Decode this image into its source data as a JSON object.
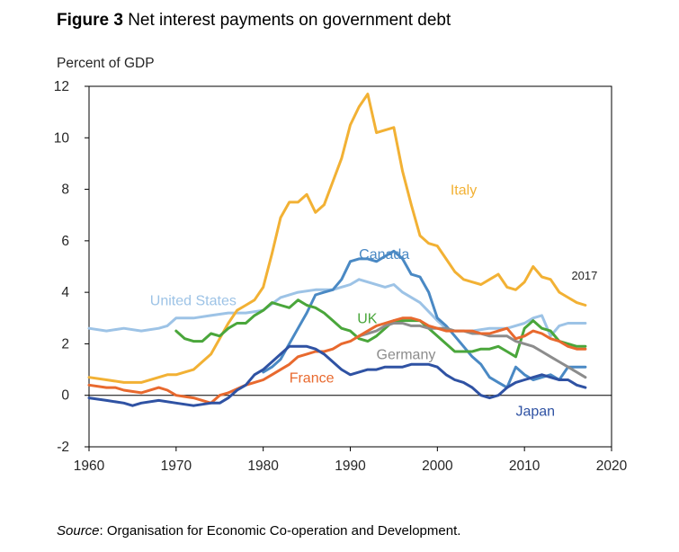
{
  "figure": {
    "number": "Figure 3",
    "title": "Net interest payments on government debt",
    "source_label": "Source",
    "source_text": ": Organisation for Economic Co-operation and Development."
  },
  "chart_data": {
    "type": "line",
    "title": "Net interest payments on government debt",
    "xlabel": "",
    "ylabel": "Percent of GDP",
    "xlim": [
      1960,
      2020
    ],
    "ylim": [
      -2,
      12
    ],
    "xticks": [
      1960,
      1970,
      1980,
      1990,
      2000,
      2010,
      2020
    ],
    "yticks": [
      -2,
      0,
      2,
      4,
      6,
      8,
      10,
      12
    ],
    "grid": false,
    "annotation": "2017",
    "series": [
      {
        "name": "United States",
        "color": "#9dc3e6",
        "label_at": [
          1967,
          3.5
        ],
        "points": [
          [
            1960,
            2.6
          ],
          [
            1962,
            2.5
          ],
          [
            1964,
            2.6
          ],
          [
            1966,
            2.5
          ],
          [
            1968,
            2.6
          ],
          [
            1969,
            2.7
          ],
          [
            1970,
            3.0
          ],
          [
            1972,
            3.0
          ],
          [
            1974,
            3.1
          ],
          [
            1976,
            3.2
          ],
          [
            1978,
            3.2
          ],
          [
            1980,
            3.3
          ],
          [
            1982,
            3.8
          ],
          [
            1984,
            4.0
          ],
          [
            1986,
            4.1
          ],
          [
            1988,
            4.1
          ],
          [
            1990,
            4.3
          ],
          [
            1991,
            4.5
          ],
          [
            1992,
            4.4
          ],
          [
            1994,
            4.2
          ],
          [
            1995,
            4.3
          ],
          [
            1996,
            4.0
          ],
          [
            1998,
            3.6
          ],
          [
            2000,
            2.9
          ],
          [
            2001,
            2.6
          ],
          [
            2002,
            2.5
          ],
          [
            2004,
            2.5
          ],
          [
            2006,
            2.6
          ],
          [
            2008,
            2.6
          ],
          [
            2010,
            2.8
          ],
          [
            2011,
            3.0
          ],
          [
            2012,
            3.1
          ],
          [
            2013,
            2.3
          ],
          [
            2014,
            2.7
          ],
          [
            2015,
            2.8
          ],
          [
            2017,
            2.8
          ]
        ]
      },
      {
        "name": "Italy",
        "color": "#f2b134",
        "label_at": [
          2001.5,
          7.8
        ],
        "points": [
          [
            1960,
            0.7
          ],
          [
            1962,
            0.6
          ],
          [
            1964,
            0.5
          ],
          [
            1966,
            0.5
          ],
          [
            1968,
            0.7
          ],
          [
            1969,
            0.8
          ],
          [
            1970,
            0.8
          ],
          [
            1972,
            1.0
          ],
          [
            1974,
            1.6
          ],
          [
            1976,
            2.8
          ],
          [
            1977,
            3.3
          ],
          [
            1978,
            3.5
          ],
          [
            1979,
            3.7
          ],
          [
            1980,
            4.2
          ],
          [
            1981,
            5.5
          ],
          [
            1982,
            6.9
          ],
          [
            1983,
            7.5
          ],
          [
            1984,
            7.5
          ],
          [
            1985,
            7.8
          ],
          [
            1986,
            7.1
          ],
          [
            1987,
            7.4
          ],
          [
            1988,
            8.3
          ],
          [
            1989,
            9.2
          ],
          [
            1990,
            10.5
          ],
          [
            1991,
            11.2
          ],
          [
            1992,
            11.7
          ],
          [
            1993,
            10.2
          ],
          [
            1994,
            10.3
          ],
          [
            1995,
            10.4
          ],
          [
            1996,
            8.7
          ],
          [
            1997,
            7.4
          ],
          [
            1998,
            6.2
          ],
          [
            1999,
            5.9
          ],
          [
            2000,
            5.8
          ],
          [
            2001,
            5.3
          ],
          [
            2002,
            4.8
          ],
          [
            2003,
            4.5
          ],
          [
            2004,
            4.4
          ],
          [
            2005,
            4.3
          ],
          [
            2006,
            4.5
          ],
          [
            2007,
            4.7
          ],
          [
            2008,
            4.2
          ],
          [
            2009,
            4.1
          ],
          [
            2010,
            4.4
          ],
          [
            2011,
            5.0
          ],
          [
            2012,
            4.6
          ],
          [
            2013,
            4.5
          ],
          [
            2014,
            4.0
          ],
          [
            2015,
            3.8
          ],
          [
            2016,
            3.6
          ],
          [
            2017,
            3.5
          ]
        ]
      },
      {
        "name": "Canada",
        "color": "#4a89c4",
        "label_at": [
          1991,
          5.3
        ],
        "points": [
          [
            1980,
            0.9
          ],
          [
            1981,
            1.1
          ],
          [
            1982,
            1.4
          ],
          [
            1983,
            2.0
          ],
          [
            1984,
            2.6
          ],
          [
            1985,
            3.2
          ],
          [
            1986,
            3.9
          ],
          [
            1987,
            4.0
          ],
          [
            1988,
            4.1
          ],
          [
            1989,
            4.5
          ],
          [
            1990,
            5.2
          ],
          [
            1991,
            5.3
          ],
          [
            1992,
            5.3
          ],
          [
            1993,
            5.2
          ],
          [
            1994,
            5.4
          ],
          [
            1995,
            5.6
          ],
          [
            1996,
            5.3
          ],
          [
            1997,
            4.7
          ],
          [
            1998,
            4.6
          ],
          [
            1999,
            4.0
          ],
          [
            2000,
            3.0
          ],
          [
            2001,
            2.7
          ],
          [
            2002,
            2.3
          ],
          [
            2003,
            1.9
          ],
          [
            2004,
            1.5
          ],
          [
            2005,
            1.2
          ],
          [
            2006,
            0.7
          ],
          [
            2007,
            0.5
          ],
          [
            2008,
            0.3
          ],
          [
            2009,
            1.1
          ],
          [
            2010,
            0.8
          ],
          [
            2011,
            0.6
          ],
          [
            2012,
            0.7
          ],
          [
            2013,
            0.8
          ],
          [
            2014,
            0.6
          ],
          [
            2015,
            1.1
          ],
          [
            2016,
            1.1
          ],
          [
            2017,
            1.1
          ]
        ]
      },
      {
        "name": "UK",
        "color": "#4aa63b",
        "label_at": [
          1990.8,
          2.8
        ],
        "points": [
          [
            1970,
            2.5
          ],
          [
            1971,
            2.2
          ],
          [
            1972,
            2.1
          ],
          [
            1973,
            2.1
          ],
          [
            1974,
            2.4
          ],
          [
            1975,
            2.3
          ],
          [
            1976,
            2.6
          ],
          [
            1977,
            2.8
          ],
          [
            1978,
            2.8
          ],
          [
            1979,
            3.1
          ],
          [
            1980,
            3.3
          ],
          [
            1981,
            3.6
          ],
          [
            1982,
            3.5
          ],
          [
            1983,
            3.4
          ],
          [
            1984,
            3.7
          ],
          [
            1985,
            3.5
          ],
          [
            1986,
            3.4
          ],
          [
            1987,
            3.2
          ],
          [
            1988,
            2.9
          ],
          [
            1989,
            2.6
          ],
          [
            1990,
            2.5
          ],
          [
            1991,
            2.2
          ],
          [
            1992,
            2.1
          ],
          [
            1993,
            2.3
          ],
          [
            1994,
            2.6
          ],
          [
            1995,
            2.9
          ],
          [
            1996,
            2.9
          ],
          [
            1997,
            2.9
          ],
          [
            1998,
            2.9
          ],
          [
            1999,
            2.6
          ],
          [
            2000,
            2.3
          ],
          [
            2001,
            2.0
          ],
          [
            2002,
            1.7
          ],
          [
            2003,
            1.7
          ],
          [
            2004,
            1.7
          ],
          [
            2005,
            1.8
          ],
          [
            2006,
            1.8
          ],
          [
            2007,
            1.9
          ],
          [
            2008,
            1.7
          ],
          [
            2009,
            1.5
          ],
          [
            2010,
            2.6
          ],
          [
            2011,
            2.9
          ],
          [
            2012,
            2.6
          ],
          [
            2013,
            2.5
          ],
          [
            2014,
            2.1
          ],
          [
            2015,
            2.0
          ],
          [
            2016,
            1.9
          ],
          [
            2017,
            1.9
          ]
        ]
      },
      {
        "name": "Germany",
        "color": "#8c8c8c",
        "label_at": [
          1993,
          1.4
        ],
        "points": [
          [
            1991,
            2.3
          ],
          [
            1992,
            2.4
          ],
          [
            1993,
            2.5
          ],
          [
            1994,
            2.7
          ],
          [
            1995,
            2.8
          ],
          [
            1996,
            2.8
          ],
          [
            1997,
            2.7
          ],
          [
            1998,
            2.7
          ],
          [
            1999,
            2.6
          ],
          [
            2000,
            2.6
          ],
          [
            2001,
            2.6
          ],
          [
            2002,
            2.5
          ],
          [
            2003,
            2.5
          ],
          [
            2004,
            2.4
          ],
          [
            2005,
            2.4
          ],
          [
            2006,
            2.3
          ],
          [
            2007,
            2.3
          ],
          [
            2008,
            2.3
          ],
          [
            2009,
            2.1
          ],
          [
            2010,
            2.0
          ],
          [
            2011,
            1.9
          ],
          [
            2012,
            1.7
          ],
          [
            2013,
            1.5
          ],
          [
            2014,
            1.3
          ],
          [
            2015,
            1.1
          ],
          [
            2016,
            0.9
          ],
          [
            2017,
            0.7
          ]
        ]
      },
      {
        "name": "France",
        "color": "#e8692e",
        "label_at": [
          1983,
          0.5
        ],
        "points": [
          [
            1960,
            0.4
          ],
          [
            1962,
            0.3
          ],
          [
            1963,
            0.3
          ],
          [
            1964,
            0.2
          ],
          [
            1966,
            0.1
          ],
          [
            1968,
            0.3
          ],
          [
            1969,
            0.2
          ],
          [
            1970,
            0.0
          ],
          [
            1972,
            -0.1
          ],
          [
            1974,
            -0.3
          ],
          [
            1975,
            0.0
          ],
          [
            1976,
            0.1
          ],
          [
            1978,
            0.4
          ],
          [
            1979,
            0.5
          ],
          [
            1980,
            0.6
          ],
          [
            1981,
            0.8
          ],
          [
            1982,
            1.0
          ],
          [
            1983,
            1.2
          ],
          [
            1984,
            1.5
          ],
          [
            1985,
            1.6
          ],
          [
            1986,
            1.7
          ],
          [
            1987,
            1.7
          ],
          [
            1988,
            1.8
          ],
          [
            1989,
            2.0
          ],
          [
            1990,
            2.1
          ],
          [
            1991,
            2.3
          ],
          [
            1992,
            2.5
          ],
          [
            1993,
            2.7
          ],
          [
            1994,
            2.8
          ],
          [
            1995,
            2.9
          ],
          [
            1996,
            3.0
          ],
          [
            1997,
            3.0
          ],
          [
            1998,
            2.9
          ],
          [
            1999,
            2.7
          ],
          [
            2000,
            2.6
          ],
          [
            2001,
            2.5
          ],
          [
            2002,
            2.5
          ],
          [
            2003,
            2.5
          ],
          [
            2004,
            2.5
          ],
          [
            2005,
            2.4
          ],
          [
            2006,
            2.4
          ],
          [
            2007,
            2.5
          ],
          [
            2008,
            2.6
          ],
          [
            2009,
            2.2
          ],
          [
            2010,
            2.3
          ],
          [
            2011,
            2.5
          ],
          [
            2012,
            2.4
          ],
          [
            2013,
            2.2
          ],
          [
            2014,
            2.1
          ],
          [
            2015,
            1.9
          ],
          [
            2016,
            1.8
          ],
          [
            2017,
            1.8
          ]
        ]
      },
      {
        "name": "Japan",
        "color": "#2f52a3",
        "label_at": [
          2009,
          -0.8
        ],
        "points": [
          [
            1960,
            -0.1
          ],
          [
            1962,
            -0.2
          ],
          [
            1964,
            -0.3
          ],
          [
            1965,
            -0.4
          ],
          [
            1966,
            -0.3
          ],
          [
            1968,
            -0.2
          ],
          [
            1970,
            -0.3
          ],
          [
            1972,
            -0.4
          ],
          [
            1974,
            -0.3
          ],
          [
            1975,
            -0.3
          ],
          [
            1976,
            -0.1
          ],
          [
            1977,
            0.2
          ],
          [
            1978,
            0.4
          ],
          [
            1979,
            0.8
          ],
          [
            1980,
            1.0
          ],
          [
            1981,
            1.3
          ],
          [
            1982,
            1.6
          ],
          [
            1983,
            1.9
          ],
          [
            1984,
            1.9
          ],
          [
            1985,
            1.9
          ],
          [
            1986,
            1.8
          ],
          [
            1987,
            1.6
          ],
          [
            1988,
            1.3
          ],
          [
            1989,
            1.0
          ],
          [
            1990,
            0.8
          ],
          [
            1991,
            0.9
          ],
          [
            1992,
            1.0
          ],
          [
            1993,
            1.0
          ],
          [
            1994,
            1.1
          ],
          [
            1995,
            1.1
          ],
          [
            1996,
            1.1
          ],
          [
            1997,
            1.2
          ],
          [
            1998,
            1.2
          ],
          [
            1999,
            1.2
          ],
          [
            2000,
            1.1
          ],
          [
            2001,
            0.8
          ],
          [
            2002,
            0.6
          ],
          [
            2003,
            0.5
          ],
          [
            2004,
            0.3
          ],
          [
            2005,
            0.0
          ],
          [
            2006,
            -0.1
          ],
          [
            2007,
            0.0
          ],
          [
            2008,
            0.3
          ],
          [
            2009,
            0.5
          ],
          [
            2010,
            0.6
          ],
          [
            2011,
            0.7
          ],
          [
            2012,
            0.8
          ],
          [
            2013,
            0.7
          ],
          [
            2014,
            0.6
          ],
          [
            2015,
            0.6
          ],
          [
            2016,
            0.4
          ],
          [
            2017,
            0.3
          ]
        ]
      }
    ]
  }
}
